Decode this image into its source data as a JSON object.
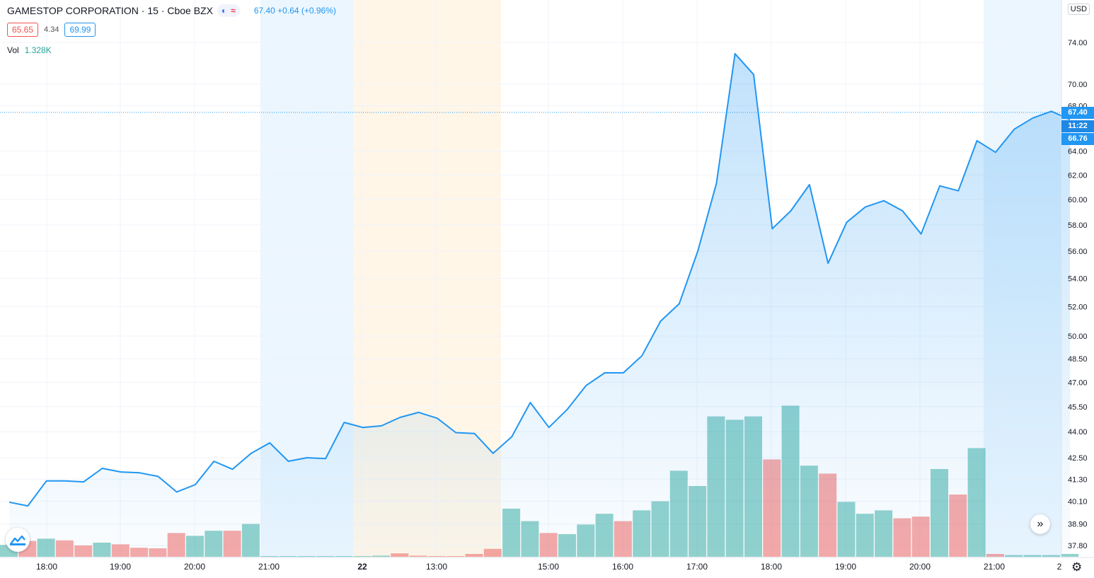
{
  "header": {
    "symbol_title": "GAMESTOP CORPORATION · 15 · Cboe BZX",
    "last_change": "67.40 +0.64 (+0.96%)",
    "low_box": "65.65",
    "mid_value": "4.34",
    "high_box": "69.99",
    "vol_label": "Vol",
    "vol_value": "1.328K",
    "currency": "USD",
    "icons": [
      "moon-icon",
      "wave-icon",
      "chevrons-right-icon",
      "tradingview-logo-icon",
      "gear-icon"
    ]
  },
  "price_tags": {
    "last": "67.40",
    "countdown": "11:22",
    "current": "66.76"
  },
  "colors": {
    "line": "#2196f3",
    "vol_up": "#26a69a",
    "vol_down": "#ef5350",
    "ext_hours": "#2196f3",
    "pre_market": "#ff9800"
  },
  "chart_data": {
    "type": "area",
    "y_scale": "log",
    "price_axis_ticks": [
      "74.00",
      "70.00",
      "68.00",
      "64.00",
      "62.00",
      "60.00",
      "58.00",
      "56.00",
      "54.00",
      "52.00",
      "50.00",
      "48.50",
      "47.00",
      "45.50",
      "44.00",
      "42.50",
      "41.30",
      "40.10",
      "38.90",
      "37.80"
    ],
    "time_axis_ticks": [
      "18:00",
      "19:00",
      "20:00",
      "21:00",
      "22",
      "13:00",
      "15:00",
      "16:00",
      "17:00",
      "18:00",
      "19:00",
      "20:00",
      "21:00",
      "2"
    ],
    "price": [
      40.05,
      39.85,
      41.2,
      41.2,
      41.15,
      41.9,
      41.7,
      41.65,
      41.45,
      40.6,
      41.0,
      42.3,
      41.85,
      42.75,
      43.35,
      42.3,
      42.5,
      42.45,
      44.55,
      44.25,
      44.35,
      44.85,
      45.15,
      44.8,
      43.95,
      43.9,
      42.75,
      43.7,
      45.75,
      44.25,
      45.35,
      46.8,
      47.6,
      47.6,
      48.7,
      51.0,
      52.2,
      56.0,
      61.3,
      72.9,
      70.9,
      57.7,
      59.1,
      61.2,
      55.1,
      58.2,
      59.4,
      59.9,
      59.1,
      57.3,
      61.1,
      60.7,
      64.9,
      63.9,
      65.9,
      66.9,
      67.5,
      66.76
    ],
    "volume": [
      0.21,
      0.28,
      0.32,
      0.29,
      0.2,
      0.25,
      0.22,
      0.16,
      0.15,
      0.42,
      0.37,
      0.46,
      0.46,
      0.58,
      0.01,
      0.01,
      0.01,
      0.01,
      0.01,
      0.01,
      0.02,
      0.06,
      0.02,
      0.01,
      0.01,
      0.05,
      0.14,
      0.85,
      0.63,
      0.42,
      0.4,
      0.57,
      0.76,
      0.63,
      0.82,
      0.98,
      1.52,
      1.25,
      2.48,
      2.42,
      2.48,
      1.72,
      2.67,
      1.61,
      1.47,
      0.97,
      0.76,
      0.82,
      0.68,
      0.71,
      1.55,
      1.1,
      1.92,
      0.05,
      0.03,
      0.03,
      0.03,
      0.05
    ],
    "volume_up": [
      1,
      0,
      1,
      0,
      0,
      1,
      0,
      0,
      0,
      0,
      1,
      1,
      0,
      1,
      1,
      1,
      1,
      1,
      1,
      1,
      1,
      0,
      0,
      0,
      0,
      0,
      0,
      1,
      1,
      0,
      1,
      1,
      1,
      0,
      1,
      1,
      1,
      1,
      1,
      1,
      1,
      0,
      1,
      1,
      0,
      1,
      1,
      1,
      0,
      0,
      1,
      0,
      1,
      0,
      1,
      1,
      1,
      1
    ]
  }
}
